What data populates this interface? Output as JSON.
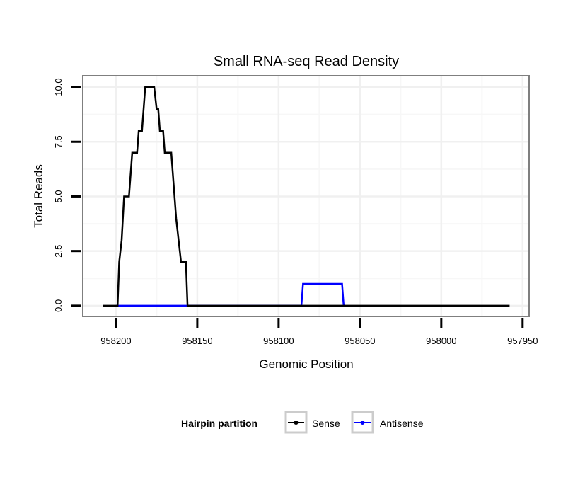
{
  "chart_data": {
    "type": "line",
    "title": "Small RNA-seq Read Density",
    "xlabel": "Genomic Position",
    "ylabel": "Total Reads",
    "xlim": [
      958220.4,
      957946
    ],
    "ylim": [
      -0.49,
      10.52
    ],
    "x_reversed": true,
    "xticks": [
      958200,
      958150,
      958100,
      958050,
      958000,
      957950
    ],
    "xtick_labels": [
      "958200",
      "958150",
      "958100",
      "958050",
      "958000",
      "957950"
    ],
    "yticks": [
      0,
      2.5,
      5,
      7.5,
      10
    ],
    "ytick_labels": [
      "0.0",
      "2.5",
      "5.0",
      "7.5",
      "10.0"
    ],
    "grid": true,
    "legend": {
      "title": "Hairpin partition",
      "placement": "bottom",
      "entries": [
        "Sense",
        "Antisense"
      ]
    },
    "series": [
      {
        "name": "Antisense",
        "color": "#0000ff",
        "points": [
          [
            958200,
            0
          ],
          [
            958086,
            0
          ],
          [
            958085,
            1
          ],
          [
            958061,
            1
          ],
          [
            958060,
            0
          ]
        ]
      },
      {
        "name": "Sense",
        "color": "#000000",
        "points": [
          [
            958208,
            0
          ],
          [
            958199,
            0
          ],
          [
            958198,
            2
          ],
          [
            958196.5,
            3
          ],
          [
            958195,
            5
          ],
          [
            958192,
            5
          ],
          [
            958190,
            7
          ],
          [
            958187,
            7
          ],
          [
            958186,
            8
          ],
          [
            958184,
            8
          ],
          [
            958182,
            10
          ],
          [
            958176.5,
            10
          ],
          [
            958175,
            9
          ],
          [
            958174,
            9
          ],
          [
            958173,
            8
          ],
          [
            958171,
            8
          ],
          [
            958170,
            7
          ],
          [
            958166,
            7
          ],
          [
            958163,
            4
          ],
          [
            958160,
            2
          ],
          [
            958157,
            2
          ],
          [
            958156,
            0
          ],
          [
            957958,
            0
          ]
        ]
      }
    ]
  }
}
